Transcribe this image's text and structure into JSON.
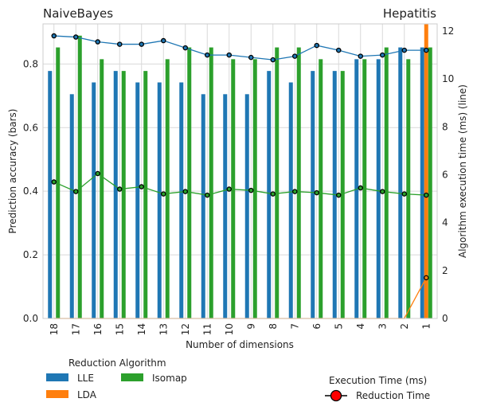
{
  "chart_data": {
    "type": "bar",
    "title_left": "NaiveBayes",
    "title_right": "Hepatitis",
    "xlabel": "Number of dimensions",
    "ylabel": "Prediction accuracy (bars)",
    "y2label": "Algorithm execution time (ms) (line)",
    "categories": [
      "18",
      "17",
      "16",
      "15",
      "14",
      "13",
      "12",
      "11",
      "10",
      "9",
      "8",
      "7",
      "6",
      "5",
      "4",
      "3",
      "2",
      "1"
    ],
    "ylim": [
      0,
      0.926
    ],
    "y2lim": [
      0,
      12.3
    ],
    "yticks": [
      0.0,
      0.2,
      0.4,
      0.6,
      0.8
    ],
    "y2ticks": [
      0,
      2,
      4,
      6,
      8,
      10,
      12
    ],
    "grid": true,
    "series": [
      {
        "name": "LLE",
        "color": "#1f77b4",
        "values": [
          0.778,
          0.705,
          0.742,
          0.778,
          0.742,
          0.742,
          0.742,
          0.705,
          0.705,
          0.705,
          0.778,
          0.742,
          0.778,
          0.778,
          0.815,
          0.815,
          0.852,
          0.852
        ]
      },
      {
        "name": "LDA",
        "color": "#ff7f0e",
        "values": [
          0,
          0,
          0,
          0,
          0,
          0,
          0,
          0,
          0,
          0,
          0,
          0,
          0,
          0,
          0,
          0,
          0,
          0.926
        ]
      },
      {
        "name": "Isomap",
        "color": "#2ca02c",
        "values": [
          0.852,
          0.889,
          0.815,
          0.778,
          0.778,
          0.815,
          0.852,
          0.852,
          0.815,
          0.815,
          0.852,
          0.852,
          0.815,
          0.778,
          0.815,
          0.852,
          0.815,
          0.852
        ]
      }
    ],
    "lines": [
      {
        "color": "#1f77b4",
        "values": [
          11.8,
          11.75,
          11.55,
          11.45,
          11.45,
          11.6,
          11.3,
          11.0,
          11.0,
          10.9,
          10.8,
          10.95,
          11.4,
          11.2,
          10.95,
          11.0,
          11.2,
          11.2
        ]
      },
      {
        "color": "#ff7f0e",
        "values": [
          0,
          0,
          0,
          0,
          0,
          0,
          0,
          0,
          0,
          0,
          0,
          0,
          0,
          0,
          0,
          0,
          0,
          1.7
        ]
      },
      {
        "color": "#2ca02c",
        "values": [
          5.7,
          5.3,
          6.05,
          5.4,
          5.5,
          5.2,
          5.3,
          5.15,
          5.4,
          5.35,
          5.2,
          5.3,
          5.25,
          5.15,
          5.45,
          5.3,
          5.2,
          5.15
        ]
      }
    ],
    "legend": {
      "title": "Reduction Algorithm",
      "items": [
        "LLE",
        "LDA",
        "Isomap"
      ],
      "position": "bottom-left"
    },
    "legend2": {
      "title": "Execution Time (ms)",
      "item": "Reduction Time",
      "marker_color": "#ff0000",
      "position": "bottom-right"
    }
  }
}
